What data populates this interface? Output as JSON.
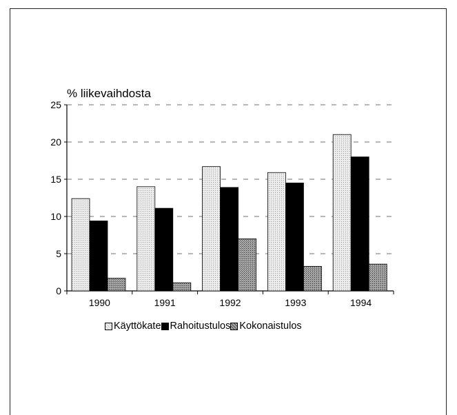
{
  "chart_data": {
    "type": "bar",
    "ylabel": "% liikevaihdosta",
    "categories": [
      "1990",
      "1991",
      "1992",
      "1993",
      "1994"
    ],
    "ylim": [
      0,
      25
    ],
    "yticks": [
      "0",
      "5",
      "10",
      "15",
      "20",
      "25"
    ],
    "grid": true,
    "legend_position": "bottom",
    "series": [
      {
        "name": "Käyttökate",
        "values": [
          12.4,
          14.0,
          16.7,
          15.9,
          21.0
        ],
        "color": "#e4e4e4"
      },
      {
        "name": "Rahoitustulos",
        "values": [
          9.4,
          11.1,
          13.9,
          14.5,
          18.0
        ],
        "color": "#000000"
      },
      {
        "name": "Kokonaistulos",
        "values": [
          1.7,
          1.1,
          7.0,
          3.3,
          3.6
        ],
        "color": "#8a8a8a"
      }
    ]
  }
}
